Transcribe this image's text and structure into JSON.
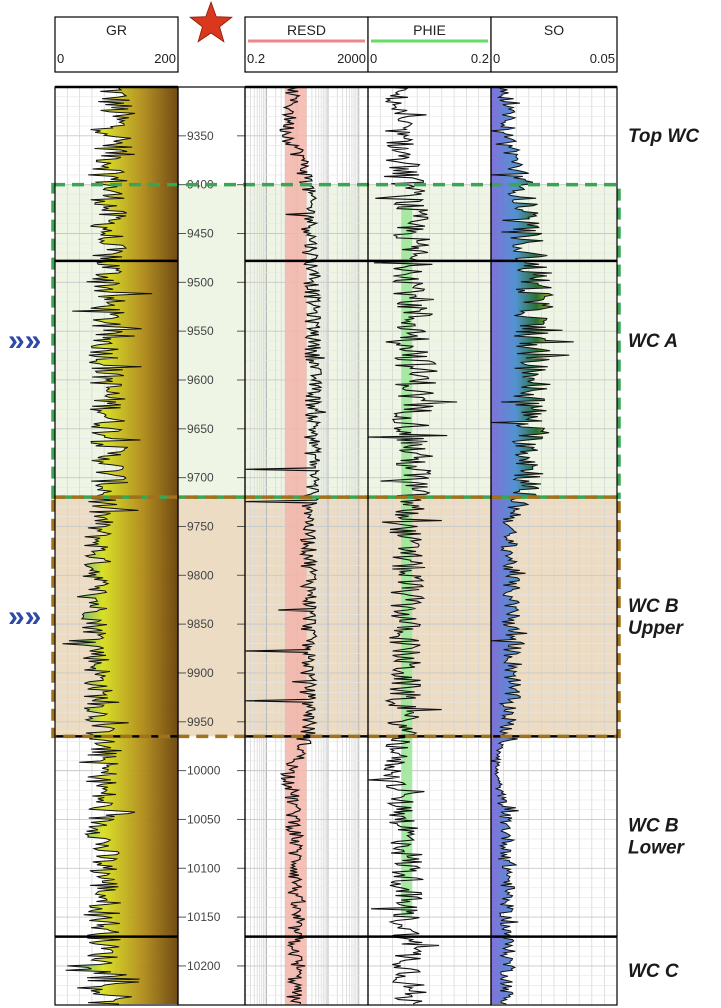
{
  "chart_data": {
    "type": "line",
    "depth_range": [
      9300,
      10240
    ],
    "depth_ticks": [
      9350,
      9400,
      9450,
      9500,
      9550,
      9600,
      9650,
      9700,
      9750,
      9800,
      9850,
      9900,
      9950,
      10000,
      10050,
      10100,
      10150,
      10200
    ],
    "tracks": [
      {
        "key": "gr",
        "name": "GR",
        "scale_min": "0",
        "scale_max": "200",
        "log": false,
        "line_color": "#000000",
        "fill": "gradient"
      },
      {
        "key": "resd",
        "name": "RESD",
        "scale_min": "0.2",
        "scale_max": "2000",
        "log": true,
        "line_color": "#000000",
        "fill": "none"
      },
      {
        "key": "phie",
        "name": "PHIE",
        "scale_min": "0",
        "scale_max": "0.2",
        "log": false,
        "line_color": "#000000",
        "fill": "#90ee90"
      },
      {
        "key": "so",
        "name": "SO",
        "scale_min": "0",
        "scale_max": "0.05",
        "log": false,
        "line_color": "#000000",
        "fill": "spectrum"
      }
    ],
    "curves": {
      "depth": [
        9300,
        9350,
        9400,
        9450,
        9500,
        9550,
        9600,
        9650,
        9700,
        9750,
        9800,
        9850,
        9900,
        9950,
        10000,
        10050,
        10100,
        10150,
        10200,
        10240
      ],
      "gr": [
        95,
        100,
        90,
        85,
        88,
        82,
        85,
        88,
        90,
        70,
        68,
        66,
        70,
        72,
        78,
        75,
        80,
        82,
        78,
        80
      ],
      "resd": [
        8,
        5,
        25,
        30,
        35,
        38,
        40,
        36,
        38,
        25,
        30,
        28,
        25,
        28,
        6,
        9,
        10,
        9,
        10,
        9
      ],
      "phie": [
        0.045,
        0.05,
        0.065,
        0.07,
        0.075,
        0.075,
        0.08,
        0.072,
        0.075,
        0.06,
        0.065,
        0.06,
        0.06,
        0.058,
        0.04,
        0.06,
        0.065,
        0.06,
        0.07,
        0.065
      ],
      "so": [
        0.006,
        0.007,
        0.012,
        0.014,
        0.018,
        0.016,
        0.017,
        0.015,
        0.016,
        0.007,
        0.008,
        0.008,
        0.009,
        0.007,
        0.002,
        0.006,
        0.007,
        0.006,
        0.007,
        0.006
      ]
    },
    "zones": [
      {
        "name": "Top WC",
        "top": 9300,
        "base": 9400
      },
      {
        "name": "WC A",
        "top": 9400,
        "base": 9720
      },
      {
        "name": "WC B Upper",
        "top": 9720,
        "base": 9965
      },
      {
        "name": "WC B Lower",
        "top": 9965,
        "base": 10170
      },
      {
        "name": "WC C",
        "top": 10170,
        "base": 10240
      }
    ],
    "formation_tops": [
      9300,
      9478,
      9965,
      10170
    ],
    "highlighted_zones": [
      {
        "zone": "WC A",
        "fill": "#eef5e4",
        "border": "#3aa655"
      },
      {
        "zone": "WC B Upper",
        "fill": "#ecdcc4",
        "border": "#a0721c"
      }
    ],
    "zone_labels": [
      {
        "lines": [
          "Top WC"
        ]
      },
      {
        "lines": [
          "WC A"
        ]
      },
      {
        "lines": [
          "WC B",
          "Upper"
        ]
      },
      {
        "lines": [
          "WC B",
          "Lower"
        ]
      },
      {
        "lines": [
          "WC C"
        ]
      }
    ],
    "markers": [
      {
        "kind": "star",
        "color": "#d9381e"
      },
      {
        "kind": "chevron",
        "zone": "WC A",
        "glyph": "»",
        "color": "#2e4aa8"
      },
      {
        "kind": "chevron",
        "zone": "WC B Upper",
        "glyph": "»",
        "color": "#2e4aa8"
      }
    ]
  }
}
